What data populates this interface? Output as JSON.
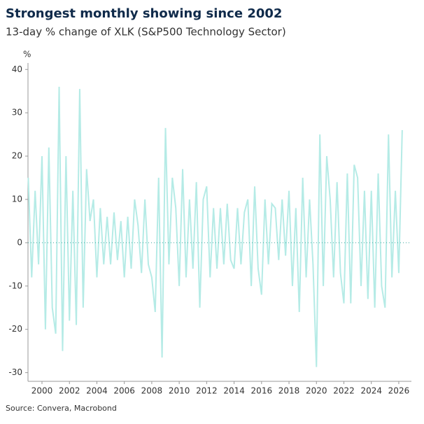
{
  "chart_data": {
    "type": "line",
    "title": "Strongest monthly showing since 2002",
    "subtitle": "13-day % change of XLK (S&P500 Technology Sector)",
    "y_label": "%",
    "source": "Source: Convera, Macrobond",
    "x": [
      1999,
      1999.25,
      1999.5,
      1999.75,
      2000,
      2000.25,
      2000.5,
      2000.75,
      2001,
      2001.25,
      2001.5,
      2001.75,
      2002,
      2002.25,
      2002.5,
      2002.75,
      2003,
      2003.25,
      2003.5,
      2003.75,
      2004,
      2004.25,
      2004.5,
      2004.75,
      2005,
      2005.25,
      2005.5,
      2005.75,
      2006,
      2006.25,
      2006.5,
      2006.75,
      2007,
      2007.25,
      2007.5,
      2007.75,
      2008,
      2008.25,
      2008.5,
      2008.75,
      2009,
      2009.25,
      2009.5,
      2009.75,
      2010,
      2010.25,
      2010.5,
      2010.75,
      2011,
      2011.25,
      2011.5,
      2011.75,
      2012,
      2012.25,
      2012.5,
      2012.75,
      2013,
      2013.25,
      2013.5,
      2013.75,
      2014,
      2014.25,
      2014.5,
      2014.75,
      2015,
      2015.25,
      2015.5,
      2015.75,
      2016,
      2016.25,
      2016.5,
      2016.75,
      2017,
      2017.25,
      2017.5,
      2017.75,
      2018,
      2018.25,
      2018.5,
      2018.75,
      2019,
      2019.25,
      2019.5,
      2019.75,
      2020,
      2020.25,
      2020.5,
      2020.75,
      2021,
      2021.25,
      2021.5,
      2021.75,
      2022,
      2022.25,
      2022.5,
      2022.75,
      2023,
      2023.25,
      2023.5,
      2023.75,
      2024,
      2024.25,
      2024.5,
      2024.75,
      2025,
      2025.25,
      2025.5,
      2025.75,
      2026,
      2026.25
    ],
    "series": [
      {
        "name": "XLK",
        "color": "#b5ebe6",
        "values": [
          15,
          -8,
          12,
          -5,
          20,
          -20,
          22,
          -15,
          -21,
          36,
          -25,
          20,
          -18,
          12,
          -19,
          35.5,
          -15,
          17,
          5,
          10,
          -8,
          8,
          -5,
          6,
          -5,
          7,
          -4,
          5,
          -8,
          6,
          -6,
          10,
          4,
          -7,
          10,
          -5,
          -8,
          -16,
          15,
          -26.5,
          26.5,
          -5,
          15,
          8,
          -10,
          17,
          -8,
          10,
          -6,
          14,
          -15,
          10,
          13,
          -8,
          8,
          -6,
          8,
          -5,
          9,
          -4,
          -6,
          8,
          -5,
          7,
          10,
          -10,
          13,
          -6,
          -12,
          10,
          -5,
          9,
          8,
          -4,
          10,
          -3,
          12,
          -10,
          8,
          -16,
          15,
          -8,
          10,
          -5,
          -28.7,
          25,
          -10,
          20,
          10,
          -8,
          14,
          -7,
          -14,
          16,
          -14,
          18,
          15,
          -10,
          12,
          -13,
          12,
          -15,
          16,
          -10,
          -15,
          25,
          -8,
          12,
          -7,
          26
        ]
      }
    ],
    "xlim": [
      1998.98,
      2026.92
    ],
    "xticks": [
      2000,
      2002,
      2004,
      2006,
      2008,
      2010,
      2012,
      2014,
      2016,
      2018,
      2020,
      2022,
      2024,
      2026
    ],
    "ylim": [
      -32,
      41.5
    ],
    "yticks": [
      -30,
      -20,
      -10,
      0,
      10,
      20,
      30,
      40
    ],
    "zero_line": true
  }
}
